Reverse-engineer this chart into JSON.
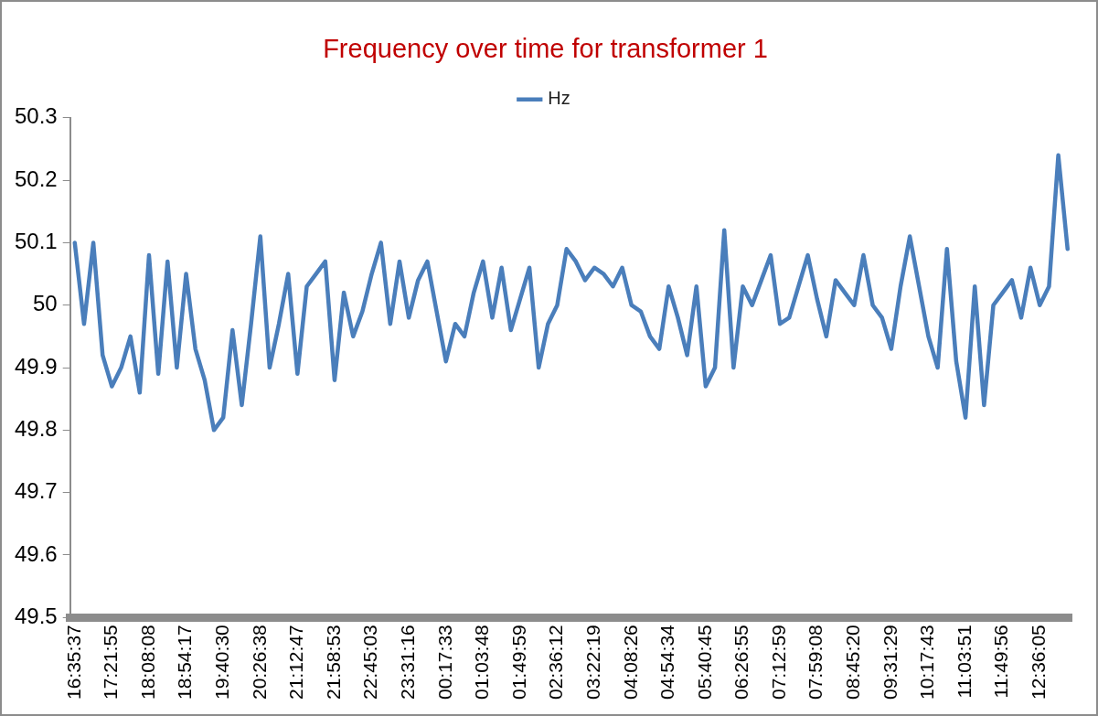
{
  "chart_data": {
    "type": "line",
    "title": "Frequency over time for transformer 1",
    "categories": [
      "16:35:37",
      null,
      null,
      null,
      "17:21:55",
      null,
      null,
      null,
      "18:08:08",
      null,
      null,
      null,
      "18:54:17",
      null,
      null,
      null,
      "19:40:30",
      null,
      null,
      null,
      "20:26:38",
      null,
      null,
      null,
      "21:12:47",
      null,
      null,
      null,
      "21:58:53",
      null,
      null,
      null,
      "22:45:03",
      null,
      null,
      null,
      "23:31:16",
      null,
      null,
      null,
      "00:17:33",
      null,
      null,
      null,
      "01:03:48",
      null,
      null,
      null,
      "01:49:59",
      null,
      null,
      null,
      "02:36:12",
      null,
      null,
      null,
      "03:22:19",
      null,
      null,
      null,
      "04:08:26",
      null,
      null,
      null,
      "04:54:34",
      null,
      null,
      null,
      "05:40:45",
      null,
      null,
      null,
      "06:26:55",
      null,
      null,
      null,
      "07:12:59",
      null,
      null,
      null,
      "07:59:08",
      null,
      null,
      null,
      "08:45:20",
      null,
      null,
      null,
      "09:31:29",
      null,
      null,
      null,
      "10:17:43",
      null,
      null,
      null,
      "11:03:51",
      null,
      null,
      null,
      "11:49:56",
      null,
      null,
      null,
      "12:36:05",
      null,
      null,
      null
    ],
    "series": [
      {
        "name": "Hz",
        "color": "#4a7ebb",
        "values": [
          50.1,
          49.97,
          50.1,
          49.92,
          49.87,
          49.9,
          49.95,
          49.86,
          50.08,
          49.89,
          50.07,
          49.9,
          50.05,
          49.93,
          49.88,
          49.8,
          49.82,
          49.96,
          49.84,
          49.97,
          50.11,
          49.9,
          49.97,
          50.05,
          49.89,
          50.03,
          50.05,
          50.07,
          49.88,
          50.02,
          49.95,
          49.99,
          50.05,
          50.1,
          49.97,
          50.07,
          49.98,
          50.04,
          50.07,
          49.99,
          49.91,
          49.97,
          49.95,
          50.02,
          50.07,
          49.98,
          50.06,
          49.96,
          50.01,
          50.06,
          49.9,
          49.97,
          50.0,
          50.09,
          50.07,
          50.04,
          50.06,
          50.05,
          50.03,
          50.06,
          50.0,
          49.99,
          49.95,
          49.93,
          50.03,
          49.98,
          49.92,
          50.03,
          49.87,
          49.9,
          50.12,
          49.9,
          50.03,
          50.0,
          50.04,
          50.08,
          49.97,
          49.98,
          50.03,
          50.08,
          50.01,
          49.95,
          50.04,
          50.02,
          50.0,
          50.08,
          50.0,
          49.98,
          49.93,
          50.03,
          50.11,
          50.03,
          49.95,
          49.9,
          50.09,
          49.91,
          49.82,
          50.03,
          49.84,
          50.0,
          50.02,
          50.04,
          49.98,
          50.06,
          50.0,
          50.03,
          50.24,
          50.09
        ]
      }
    ],
    "ylim": [
      49.5,
      50.3
    ],
    "yticks": [
      49.5,
      49.6,
      49.7,
      49.8,
      49.9,
      50.0,
      50.1,
      50.2,
      50.3
    ],
    "grid": false,
    "legend": "top",
    "marker": "none",
    "line_style": "solid"
  }
}
